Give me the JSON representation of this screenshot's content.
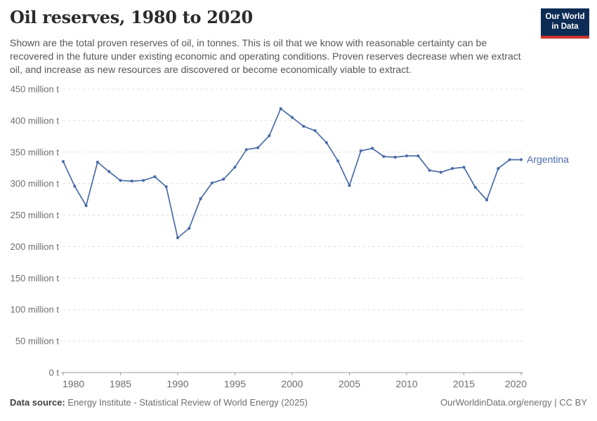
{
  "header": {
    "title": "Oil reserves, 1980 to 2020",
    "subtitle": "Shown are the total proven reserves of oil, in tonnes. This is oil that we know with reasonable certainty can be recovered in the future under existing economic and operating conditions. Proven reserves decrease when we extract oil, and increase as new resources are discovered or become economically viable to extract.",
    "logo": {
      "line1": "Our World",
      "line2": "in Data",
      "bg_color": "#0d2c55",
      "bar_color": "#d0342c"
    }
  },
  "chart_data": {
    "type": "line",
    "title": "Oil reserves, 1980 to 2020",
    "xlabel": "",
    "ylabel": "",
    "y_unit": "tonnes",
    "xlim": [
      1980,
      2020
    ],
    "ylim": [
      0,
      450000000
    ],
    "ylim_million_t": [
      0,
      450
    ],
    "grid": "horizontal-dashed",
    "legend_position": "end-of-line-label",
    "x_ticks": [
      1980,
      1985,
      1990,
      1995,
      2000,
      2005,
      2010,
      2015,
      2020
    ],
    "y_ticks_million_t": [
      0,
      50,
      100,
      150,
      200,
      250,
      300,
      350,
      400,
      450
    ],
    "y_tick_labels": [
      "0 t",
      "50 million t",
      "100 million t",
      "150 million t",
      "200 million t",
      "250 million t",
      "300 million t",
      "350 million t",
      "400 million t",
      "450 million t"
    ],
    "series": [
      {
        "name": "Argentina",
        "color": "#4a6ba8",
        "x": [
          1980,
          1981,
          1982,
          1983,
          1984,
          1985,
          1986,
          1987,
          1988,
          1989,
          1990,
          1991,
          1992,
          1993,
          1994,
          1995,
          1996,
          1997,
          1998,
          1999,
          2000,
          2001,
          2002,
          2003,
          2004,
          2005,
          2006,
          2007,
          2008,
          2009,
          2010,
          2011,
          2012,
          2013,
          2014,
          2015,
          2016,
          2017,
          2018,
          2019,
          2020
        ],
        "values_million_t": [
          335,
          296,
          265,
          334,
          319,
          305,
          304,
          305,
          311,
          295,
          214,
          229,
          276,
          301,
          307,
          326,
          354,
          357,
          376,
          419,
          405,
          391,
          384,
          365,
          336,
          297,
          352,
          356,
          343,
          342,
          344,
          344,
          321,
          318,
          324,
          326,
          294,
          274,
          324,
          338,
          338
        ]
      }
    ]
  },
  "footer": {
    "source_label": "Data source:",
    "source_text": "Energy Institute - Statistical Review of World Energy (2025)",
    "credit": "OurWorldinData.org/energy | CC BY"
  }
}
